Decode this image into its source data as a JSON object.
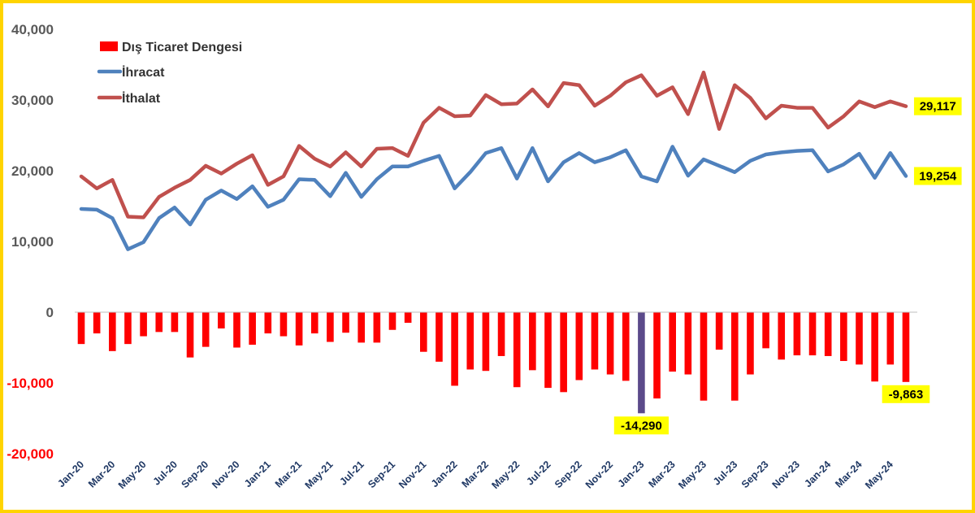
{
  "chart_data": {
    "type": "bar+line",
    "title": "",
    "xlabel": "",
    "ylabel": "",
    "ylim": [
      -20000,
      40000
    ],
    "yticks": [
      {
        "value": 40000,
        "label": "40,000"
      },
      {
        "value": 30000,
        "label": "30,000"
      },
      {
        "value": 20000,
        "label": "20,000"
      },
      {
        "value": 10000,
        "label": "10,000"
      },
      {
        "value": 0,
        "label": "0"
      },
      {
        "value": -10000,
        "label": "-10,000"
      },
      {
        "value": -20000,
        "label": "-20,000"
      }
    ],
    "grid": false,
    "legend_position": "top-left",
    "categories": [
      "Jan-20",
      "Feb-20",
      "Mar-20",
      "Apr-20",
      "May-20",
      "Jun-20",
      "Jul-20",
      "Aug-20",
      "Sep-20",
      "Oct-20",
      "Nov-20",
      "Dec-20",
      "Jan-21",
      "Feb-21",
      "Mar-21",
      "Apr-21",
      "May-21",
      "Jun-21",
      "Jul-21",
      "Aug-21",
      "Sep-21",
      "Oct-21",
      "Nov-21",
      "Dec-21",
      "Jan-22",
      "Feb-22",
      "Mar-22",
      "Apr-22",
      "May-22",
      "Jun-22",
      "Jul-22",
      "Aug-22",
      "Sep-22",
      "Oct-22",
      "Nov-22",
      "Dec-22",
      "Jan-23",
      "Feb-23",
      "Mar-23",
      "Apr-23",
      "May-23",
      "Jun-23",
      "Jul-23",
      "Aug-23",
      "Sep-23",
      "Oct-23",
      "Nov-23",
      "Dec-23",
      "Jan-24",
      "Feb-24",
      "Mar-24",
      "Apr-24",
      "May-24",
      "Jun-24"
    ],
    "tick_labels": [
      "Jan-20",
      "Mar-20",
      "May-20",
      "Jul-20",
      "Sep-20",
      "Nov-20",
      "Jan-21",
      "Mar-21",
      "May-21",
      "Jul-21",
      "Sep-21",
      "Nov-21",
      "Jan-22",
      "Mar-22",
      "May-22",
      "Jul-22",
      "Sep-22",
      "Nov-22",
      "Jan-23",
      "Mar-23",
      "May-23",
      "Jul-23",
      "Sep-23",
      "Nov-23",
      "Jan-24",
      "Mar-24",
      "May-24"
    ],
    "series": [
      {
        "name": "Dış Ticaret Dengesi",
        "kind": "bar",
        "color": "#ff0000",
        "highlight_color": "#5b4a8a",
        "highlight_index": 36,
        "values": [
          -4500,
          -3000,
          -5500,
          -4500,
          -3400,
          -2800,
          -2800,
          -6400,
          -4900,
          -2300,
          -5000,
          -4600,
          -3000,
          -3400,
          -4700,
          -3000,
          -4200,
          -2900,
          -4300,
          -4300,
          -2500,
          -1500,
          -5600,
          -7000,
          -10400,
          -8100,
          -8300,
          -6200,
          -10600,
          -8200,
          -10700,
          -11300,
          -9600,
          -8100,
          -8800,
          -9700,
          -14290,
          -12200,
          -8400,
          -8800,
          -12500,
          -5300,
          -12500,
          -8800,
          -5100,
          -6700,
          -6100,
          -6100,
          -6200,
          -6900,
          -7400,
          -9800,
          -7400,
          -9863
        ]
      },
      {
        "name": "İhracat",
        "kind": "line",
        "color": "#4f81bd",
        "values": [
          14600,
          14500,
          13300,
          8900,
          9900,
          13300,
          14800,
          12400,
          15900,
          17200,
          16000,
          17800,
          14900,
          15900,
          18800,
          18700,
          16400,
          19700,
          16300,
          18800,
          20600,
          20600,
          21400,
          22100,
          17500,
          19800,
          22500,
          23200,
          18900,
          23200,
          18500,
          21200,
          22500,
          21200,
          21900,
          22900,
          19200,
          18500,
          23400,
          19300,
          21600,
          20700,
          19800,
          21400,
          22300,
          22600,
          22800,
          22900,
          19900,
          20900,
          22400,
          19000,
          22500,
          19254
        ]
      },
      {
        "name": "İthalat",
        "kind": "line",
        "color": "#c0504d",
        "values": [
          19200,
          17500,
          18700,
          13500,
          13400,
          16300,
          17600,
          18700,
          20700,
          19600,
          21000,
          22200,
          18000,
          19200,
          23500,
          21700,
          20600,
          22600,
          20600,
          23100,
          23200,
          22100,
          26800,
          28900,
          27700,
          27800,
          30700,
          29400,
          29500,
          31500,
          29100,
          32400,
          32100,
          29200,
          30600,
          32500,
          33500,
          30600,
          31800,
          28000,
          33900,
          25900,
          32100,
          30300,
          27400,
          29200,
          28900,
          28900,
          26100,
          27700,
          29800,
          29000,
          29800,
          29117
        ]
      }
    ],
    "annotations": [
      {
        "series": "İthalat",
        "index": 53,
        "label": "29,117"
      },
      {
        "series": "İhracat",
        "index": 53,
        "label": "19,254"
      },
      {
        "series": "Dış Ticaret Dengesi",
        "index": 36,
        "label": "-14,290"
      },
      {
        "series": "Dış Ticaret Dengesi",
        "index": 53,
        "label": "-9,863"
      }
    ],
    "callout_color": "#ffff00"
  }
}
